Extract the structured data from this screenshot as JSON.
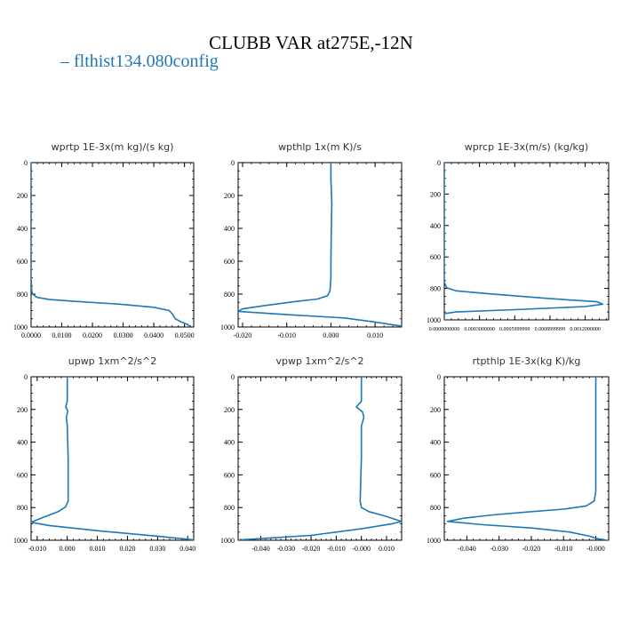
{
  "figure": {
    "title": "CLUBB VAR at275E,-12N",
    "legend_label": "flthist134.080config",
    "line_color": "#1f77b4"
  },
  "chart_data": [
    {
      "type": "line",
      "title": "wprtp  1E-3x(m kg)/(s kg)",
      "xlim": [
        0.0,
        0.053
      ],
      "ylim": [
        1000,
        0
      ],
      "xticks": [
        0.0,
        0.01,
        0.02,
        0.03,
        0.04,
        0.05
      ],
      "xtick_labels": [
        "0.0000",
        "0.0100",
        "0.0200",
        "0.0300",
        "0.0400",
        "0.0500"
      ],
      "yticks": [
        0,
        200,
        400,
        600,
        800,
        1000
      ],
      "ytick_labels": [
        "0",
        "200",
        "400",
        "600",
        "800",
        "1000"
      ],
      "series": [
        {
          "x": [
            0.0,
            0.0,
            0.0,
            0.0,
            0.0002,
            0.0005,
            0.002,
            0.006,
            0.015,
            0.028,
            0.04,
            0.045,
            0.046,
            0.047,
            0.049,
            0.051,
            0.052
          ],
          "y": [
            0,
            200,
            400,
            700,
            780,
            800,
            820,
            833,
            845,
            860,
            880,
            900,
            920,
            950,
            970,
            985,
            998
          ]
        }
      ]
    },
    {
      "type": "line",
      "title": "wpthlp  1x(m K)/s",
      "xlim": [
        -0.021,
        0.016
      ],
      "ylim": [
        1000,
        0
      ],
      "xticks": [
        -0.02,
        -0.01,
        0.0,
        0.01
      ],
      "xtick_labels": [
        "-0.020",
        "-0.010",
        "0.000",
        "0.010"
      ],
      "yticks": [
        0,
        200,
        400,
        600,
        800,
        1000
      ],
      "ytick_labels": [
        "0",
        "200",
        "400",
        "600",
        "800",
        "1000"
      ],
      "series": [
        {
          "x": [
            0.0,
            0.0,
            0.0002,
            0.0001,
            0.0,
            0.0,
            -0.0002,
            -0.0008,
            -0.003,
            -0.008,
            -0.015,
            -0.02,
            -0.021,
            -0.01,
            0.003,
            0.01,
            0.016
          ],
          "y": [
            0,
            100,
            250,
            400,
            600,
            700,
            780,
            810,
            830,
            845,
            870,
            890,
            905,
            925,
            945,
            970,
            995
          ]
        }
      ]
    },
    {
      "type": "line",
      "title": "wprcp  1E-3x(m/s) (kg/kg)",
      "xlim": [
        0.0,
        0.0014
      ],
      "ylim": [
        1000,
        0
      ],
      "xticks": [
        0.0,
        0.0003,
        0.0006,
        0.0009,
        0.0012
      ],
      "xtick_labels": [
        "0.0000000000",
        "0.0003000000",
        "0.0005999999",
        "0.0008999999",
        "0.0012000000"
      ],
      "yticks": [
        0,
        200,
        400,
        600,
        800,
        1000
      ],
      "ytick_labels": [
        "0",
        "200",
        "400",
        "600",
        "800",
        "1000"
      ],
      "series": [
        {
          "x": [
            0.0,
            0.0,
            0.0,
            2e-05,
            0.0001,
            0.0004,
            0.0009,
            0.0013,
            0.00135,
            0.0012,
            0.0006,
            0.0001,
            0.0,
            0.0
          ],
          "y": [
            0,
            400,
            760,
            795,
            815,
            835,
            865,
            885,
            900,
            915,
            935,
            950,
            960,
            1000
          ]
        }
      ]
    },
    {
      "type": "line",
      "title": "upwp  1xm^2/s^2",
      "xlim": [
        -0.012,
        0.042
      ],
      "ylim": [
        1000,
        0
      ],
      "xticks": [
        -0.01,
        0.0,
        0.01,
        0.02,
        0.03,
        0.04
      ],
      "xtick_labels": [
        "-0.010",
        "0.000",
        "0.010",
        "0.020",
        "0.030",
        "0.040"
      ],
      "yticks": [
        0,
        200,
        400,
        600,
        800,
        1000
      ],
      "ytick_labels": [
        "0",
        "200",
        "400",
        "600",
        "800",
        "1000"
      ],
      "series": [
        {
          "x": [
            0.0,
            0.0,
            -0.0005,
            0.0002,
            -0.0003,
            0.0,
            0.0003,
            0.0003,
            -0.0005,
            -0.003,
            -0.008,
            -0.012,
            -0.006,
            0.012,
            0.03,
            0.042
          ],
          "y": [
            0,
            150,
            185,
            210,
            250,
            300,
            500,
            760,
            795,
            825,
            860,
            890,
            910,
            945,
            975,
            998
          ]
        }
      ]
    },
    {
      "type": "line",
      "title": "vpwp  1xm^2/s^2",
      "xlim": [
        -0.049,
        0.016
      ],
      "ylim": [
        1000,
        0
      ],
      "xticks": [
        -0.04,
        -0.03,
        -0.02,
        -0.01,
        0.0,
        0.01
      ],
      "xtick_labels": [
        "-0.040",
        "-0.030",
        "-0.020",
        "-0.010",
        "-0.000",
        "0.010"
      ],
      "yticks": [
        0,
        200,
        400,
        600,
        800,
        1000
      ],
      "ytick_labels": [
        "0",
        "200",
        "400",
        "600",
        "800",
        "1000"
      ],
      "series": [
        {
          "x": [
            0.0,
            0.0,
            -0.002,
            0.0005,
            0.001,
            0.0,
            0.0,
            -0.0005,
            0.0,
            0.003,
            0.009,
            0.013,
            0.016,
            0.012,
            0.0,
            -0.02,
            -0.048
          ],
          "y": [
            0,
            150,
            185,
            215,
            250,
            300,
            500,
            760,
            800,
            825,
            850,
            870,
            885,
            900,
            930,
            970,
            998
          ]
        }
      ]
    },
    {
      "type": "line",
      "title": "rtpthlp  1E-3x(kg K)/kg",
      "xlim": [
        -0.047,
        0.004
      ],
      "ylim": [
        1000,
        0
      ],
      "xticks": [
        -0.04,
        -0.03,
        -0.02,
        -0.01,
        0.0
      ],
      "xtick_labels": [
        "-0.040",
        "-0.030",
        "-0.020",
        "-0.010",
        "-0.000"
      ],
      "yticks": [
        0,
        200,
        400,
        600,
        800,
        1000
      ],
      "ytick_labels": [
        "0",
        "200",
        "400",
        "600",
        "800",
        "1000"
      ],
      "series": [
        {
          "x": [
            0.0,
            0.0,
            0.0,
            -0.0005,
            -0.003,
            -0.01,
            -0.02,
            -0.032,
            -0.041,
            -0.046,
            -0.035,
            -0.02,
            -0.008,
            -0.002,
            0.001,
            0.003
          ],
          "y": [
            0,
            300,
            700,
            760,
            790,
            810,
            825,
            845,
            865,
            885,
            905,
            925,
            950,
            975,
            993,
            998
          ]
        }
      ]
    }
  ]
}
